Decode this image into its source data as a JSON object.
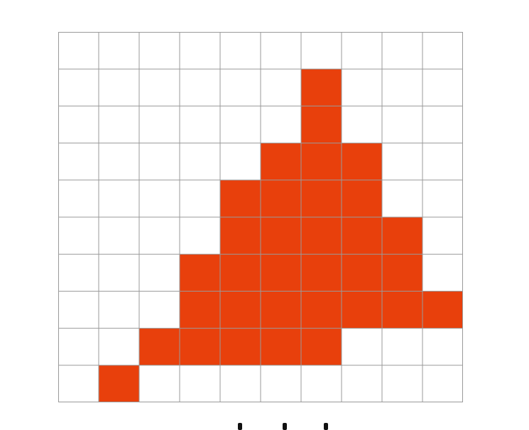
{
  "grid": {
    "rows": 10,
    "cols": 10,
    "fill_color": "#e8400c",
    "line_color": "#9a9a9a",
    "background_color": "#ffffff",
    "filled_cells": [
      [
        1,
        6
      ],
      [
        2,
        6
      ],
      [
        3,
        5
      ],
      [
        3,
        6
      ],
      [
        3,
        7
      ],
      [
        4,
        4
      ],
      [
        4,
        5
      ],
      [
        4,
        6
      ],
      [
        4,
        7
      ],
      [
        5,
        4
      ],
      [
        5,
        5
      ],
      [
        5,
        6
      ],
      [
        5,
        7
      ],
      [
        5,
        8
      ],
      [
        6,
        3
      ],
      [
        6,
        4
      ],
      [
        6,
        5
      ],
      [
        6,
        6
      ],
      [
        6,
        7
      ],
      [
        6,
        8
      ],
      [
        7,
        3
      ],
      [
        7,
        4
      ],
      [
        7,
        5
      ],
      [
        7,
        6
      ],
      [
        7,
        7
      ],
      [
        7,
        8
      ],
      [
        7,
        9
      ],
      [
        8,
        2
      ],
      [
        8,
        3
      ],
      [
        8,
        4
      ],
      [
        8,
        5
      ],
      [
        8,
        6
      ],
      [
        9,
        1
      ]
    ]
  }
}
